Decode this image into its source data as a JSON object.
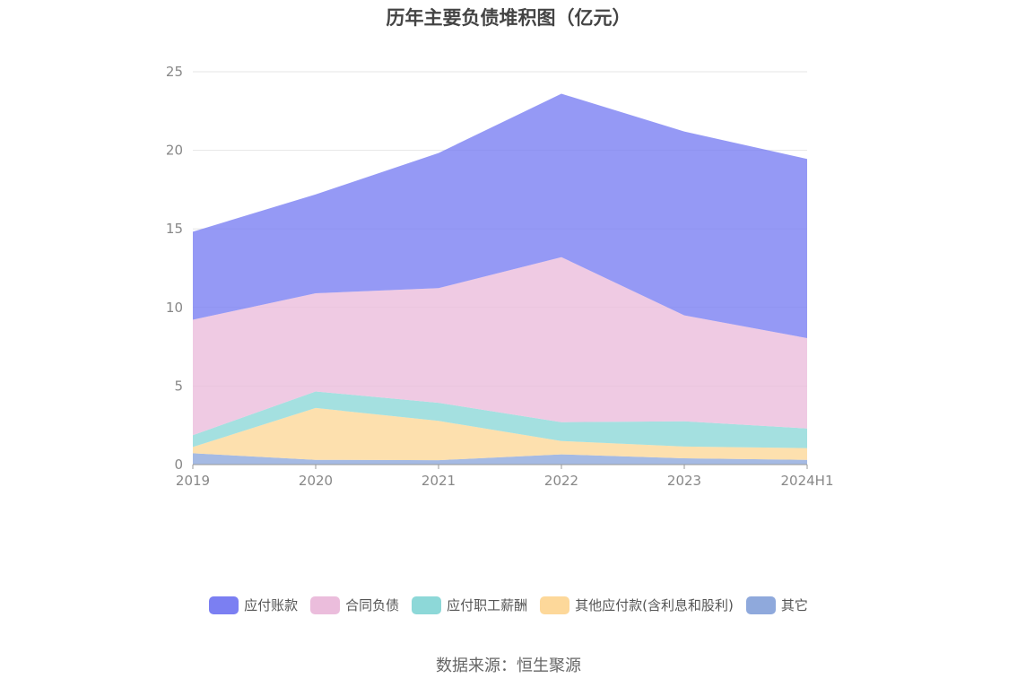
{
  "chart_data": {
    "type": "area",
    "stacked": true,
    "title": "历年主要负债堆积图（亿元）",
    "x": [
      "2019",
      "2020",
      "2021",
      "2022",
      "2023",
      "2024H1"
    ],
    "ylim": [
      0,
      25
    ],
    "yticks": [
      0,
      5,
      10,
      15,
      20,
      25
    ],
    "grid": true,
    "legend_position": "bottom",
    "series": [
      {
        "name": "其它",
        "color": "#8fa9dc",
        "values": [
          0.72,
          0.3,
          0.28,
          0.65,
          0.4,
          0.3
        ]
      },
      {
        "name": "其他应付款(含利息和股利)",
        "color": "#fdd89a",
        "values": [
          0.4,
          3.3,
          2.5,
          0.85,
          0.75,
          0.75
        ]
      },
      {
        "name": "应付职工薪酬",
        "color": "#8dd8d8",
        "values": [
          0.75,
          1.05,
          1.15,
          1.2,
          1.6,
          1.25
        ]
      },
      {
        "name": "合同负债",
        "color": "#ebbddc",
        "values": [
          7.35,
          6.25,
          7.3,
          10.5,
          6.75,
          5.75
        ]
      },
      {
        "name": "应付账款",
        "color": "#7b7ff2",
        "values": [
          5.6,
          6.3,
          8.6,
          10.4,
          11.7,
          11.4
        ]
      }
    ]
  },
  "source": "数据来源：恒生聚源"
}
